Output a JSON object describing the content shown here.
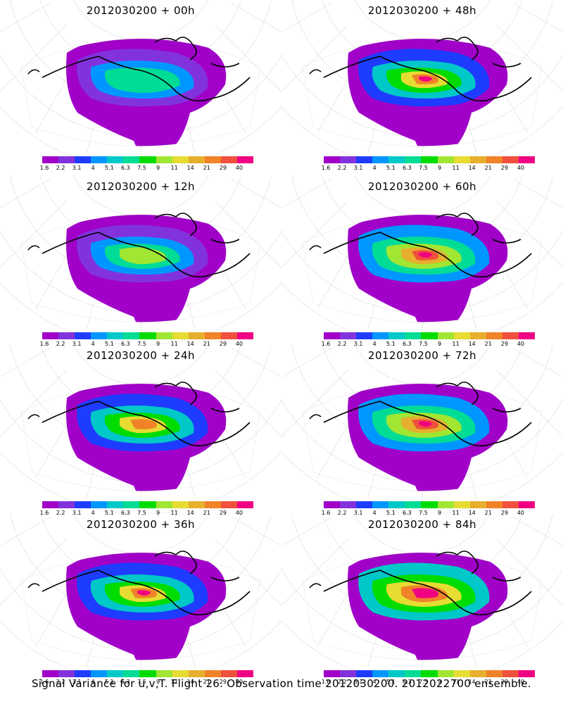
{
  "panels": [
    {
      "title": "2012030200 + 00h"
    },
    {
      "title": "2012030200 + 48h"
    },
    {
      "title": "2012030200 + 12h"
    },
    {
      "title": "2012030200 + 60h"
    },
    {
      "title": "2012030200 + 24h"
    },
    {
      "title": "2012030200 + 72h"
    },
    {
      "title": "2012030200 + 36h"
    },
    {
      "title": "2012030200 + 84h"
    }
  ],
  "colorbar": {
    "labels": [
      "1.6",
      "2.2",
      "3.1",
      "4",
      "5.1",
      "6.3",
      "7.5",
      "9",
      "11",
      "14",
      "21",
      "29",
      "40"
    ],
    "colors": [
      "#a000c8",
      "#8232dc",
      "#1e3cff",
      "#0096ff",
      "#00c8c8",
      "#00dc96",
      "#00dc00",
      "#a0e632",
      "#e6dc32",
      "#e6af2d",
      "#f08228",
      "#f0503c",
      "#f00082"
    ]
  },
  "caption": "Signal Variance for u,v,T. Flight 26. Observation time 2012030200. 2012022700 ensemble."
}
